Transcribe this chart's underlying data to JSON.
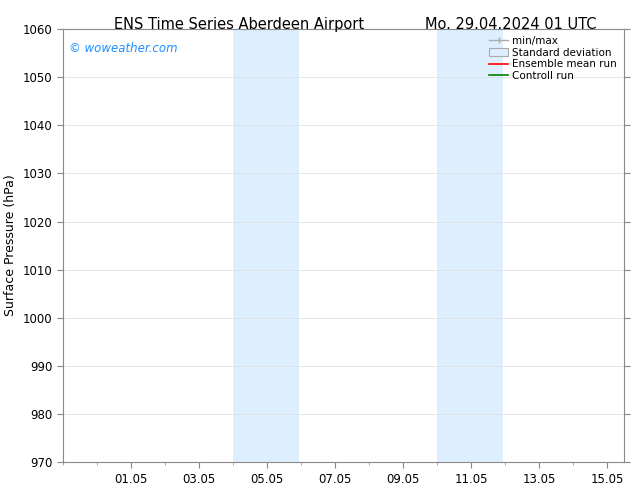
{
  "title_left": "ENS Time Series Aberdeen Airport",
  "title_right": "Mo. 29.04.2024 01 UTC",
  "ylabel": "Surface Pressure (hPa)",
  "ylim": [
    970,
    1060
  ],
  "yticks": [
    970,
    980,
    990,
    1000,
    1010,
    1020,
    1030,
    1040,
    1050,
    1060
  ],
  "xlim": [
    0,
    16.5
  ],
  "xtick_labels": [
    "01.05",
    "03.05",
    "05.05",
    "07.05",
    "09.05",
    "11.05",
    "13.05",
    "15.05"
  ],
  "xtick_positions": [
    2,
    4,
    6,
    8,
    10,
    12,
    14,
    16
  ],
  "shaded_bands": [
    {
      "x_start": 5.0,
      "x_end": 5.95
    },
    {
      "x_start": 5.95,
      "x_end": 6.95
    },
    {
      "x_start": 11.0,
      "x_end": 11.95
    },
    {
      "x_start": 11.95,
      "x_end": 12.95
    }
  ],
  "band_color": "#ddeeff",
  "watermark_text": "© woweather.com",
  "watermark_color": "#1E90FF",
  "bg_color": "#ffffff",
  "grid_color": "#dddddd",
  "title_fontsize": 10.5,
  "tick_fontsize": 8.5,
  "label_fontsize": 9,
  "legend_labels": [
    "min/max",
    "Standard deviation",
    "Ensemble mean run",
    "Controll run"
  ],
  "legend_colors": [
    "#aaaaaa",
    "#c8d8e8",
    "red",
    "green"
  ]
}
